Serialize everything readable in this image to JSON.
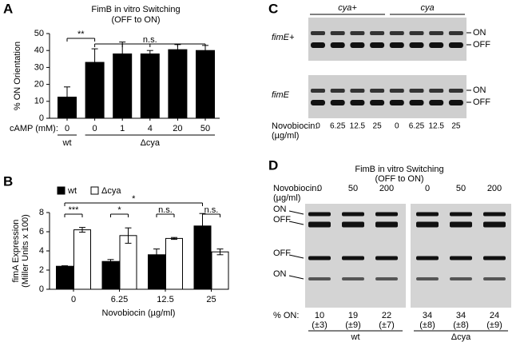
{
  "chart_data": [
    {
      "type": "bar",
      "panel": "A",
      "title": "FimB in vitro Switching",
      "subtitle": "(OFF to ON)",
      "y_label": "% ON Orientation",
      "x_prefix": "cAMP (mM):",
      "categories": [
        "0",
        "0",
        "1",
        "4",
        "20",
        "50"
      ],
      "values": [
        12.5,
        33,
        38,
        38,
        40.5,
        40
      ],
      "errors": [
        6,
        8,
        7,
        2,
        3,
        3
      ],
      "color": "#000000",
      "ylim": [
        0,
        50
      ],
      "yticks": [
        0,
        10,
        20,
        30,
        40,
        50
      ],
      "groups": [
        {
          "label": "wt",
          "categories": [
            0
          ]
        },
        {
          "label": "Δcya",
          "categories": [
            1,
            2,
            3,
            4,
            5
          ]
        }
      ],
      "brackets": [
        {
          "label": "**",
          "from": 0,
          "to": 1
        },
        {
          "label": "n.s.",
          "from": 1,
          "to": 5
        }
      ]
    },
    {
      "type": "bar",
      "panel": "B",
      "y_label": [
        "fimA Expression",
        "(Miller Units x 100)"
      ],
      "x_label": "Novobiocin (µg/ml)",
      "categories": [
        "0",
        "6.25",
        "12.5",
        "25"
      ],
      "series": [
        {
          "name": "wt",
          "color": "#000000",
          "values": [
            2.4,
            2.9,
            3.6,
            6.6
          ],
          "errors": [
            0.05,
            0.2,
            0.6,
            1.3
          ]
        },
        {
          "name": "Δcya",
          "color": "#ffffff",
          "values": [
            6.2,
            5.6,
            5.3,
            3.9
          ],
          "errors": [
            0.25,
            0.8,
            0.1,
            0.3
          ]
        }
      ],
      "ylim": [
        0,
        8
      ],
      "yticks": [
        0,
        2,
        4,
        6,
        8
      ],
      "legend": "top-left",
      "brackets": [
        {
          "label": "***",
          "from": [
            0,
            0
          ],
          "to": [
            0,
            1
          ]
        },
        {
          "label": "*",
          "from": [
            1,
            0
          ],
          "to": [
            1,
            1
          ]
        },
        {
          "label": "n.s.",
          "from": [
            2,
            0
          ],
          "to": [
            2,
            1
          ]
        },
        {
          "label": "n.s.",
          "from": [
            3,
            0
          ],
          "to": [
            3,
            1
          ]
        },
        {
          "label": "*",
          "from": [
            0,
            0
          ],
          "to": [
            3,
            0
          ]
        }
      ]
    }
  ],
  "panels": {
    "C": {
      "letter": "C",
      "groups": [
        "cya+",
        "cya"
      ],
      "rows": [
        "fimE+",
        "fimE"
      ],
      "bands": [
        "ON",
        "OFF"
      ],
      "x_prefix": "Novobiocin:",
      "x_unit": "(µg/ml)",
      "lanes": [
        "0",
        "6.25",
        "12.5",
        "25",
        "0",
        "6.25",
        "12.5",
        "25"
      ]
    },
    "D": {
      "letter": "D",
      "title": "FimB in vitro Switching",
      "subtitle": "(OFF to ON)",
      "x_prefix": "Novobiocin:",
      "x_unit": "(µg/ml)",
      "lanes": [
        "0",
        "50",
        "200",
        "0",
        "50",
        "200"
      ],
      "bands": [
        "ON",
        "OFF",
        "OFF",
        "ON"
      ],
      "percent_label": "% ON:",
      "percent_on": [
        10,
        19,
        22,
        34,
        34,
        24
      ],
      "sd": [
        "(±3)",
        "(±9)",
        "(±7)",
        "(±8)",
        "(±8)",
        "(±9)"
      ],
      "groups": [
        "wt",
        "Δcya"
      ]
    }
  }
}
